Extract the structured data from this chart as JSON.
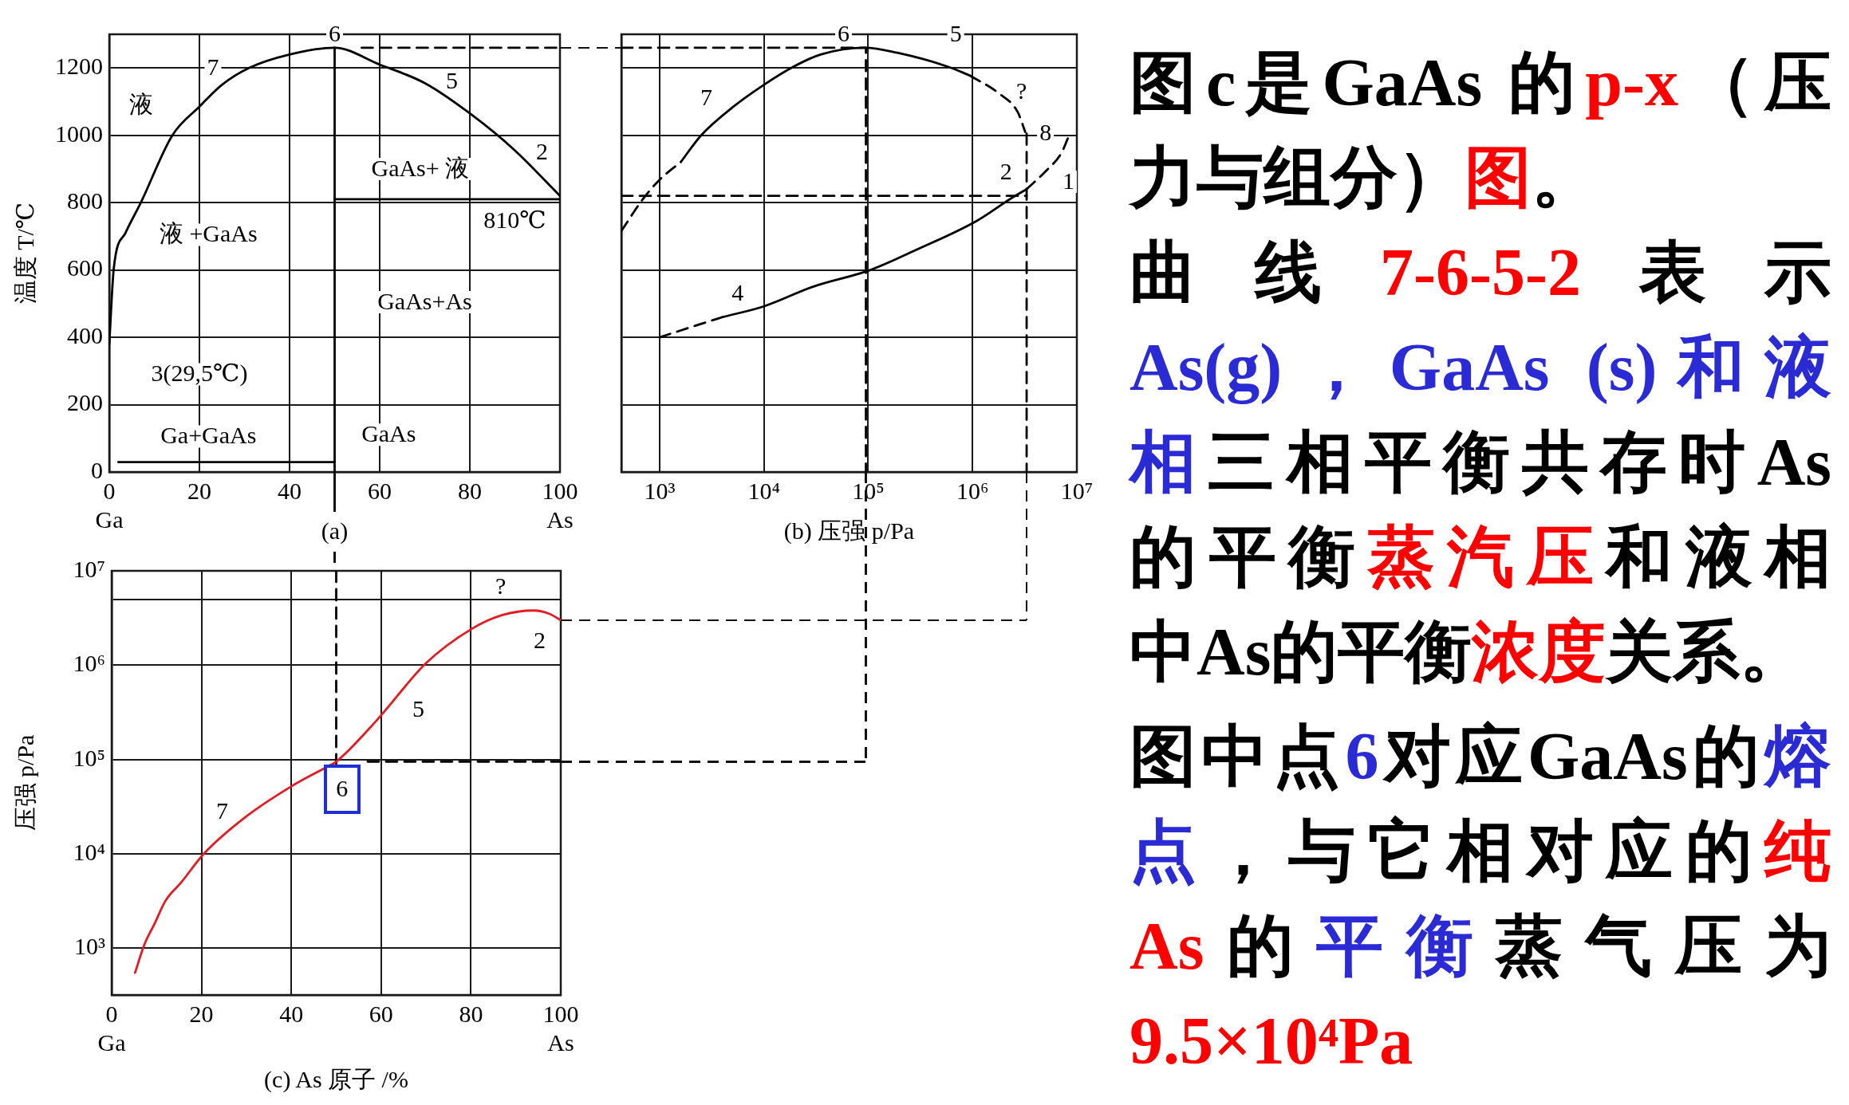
{
  "chart_data": [
    {
      "type": "line",
      "xlabel": "(a)",
      "ylabel": "温度 T/℃",
      "xlim": [
        0,
        100
      ],
      "xticks": [
        {
          "value": 0,
          "label": "0\nGa"
        },
        20,
        40,
        60,
        80,
        {
          "value": 100,
          "label": "100\nAs"
        }
      ],
      "ylim": [
        0,
        1300
      ],
      "yticks": [
        0,
        200,
        400,
        600,
        800,
        1000,
        1200
      ],
      "grid": true,
      "marker": "none",
      "series": [
        {
          "color": "#000000",
          "x": [
            0,
            1,
            3.6,
            7,
            14,
            20,
            25,
            31,
            40,
            50,
            60,
            70,
            80,
            90,
            100
          ],
          "values": [
            380,
            605,
            710,
            800,
            1000,
            1085,
            1150,
            1200,
            1240,
            1260,
            1210,
            1155,
            1065,
            955,
            820
          ]
        },
        {
          "color": "#000000",
          "x": [
            50,
            50
          ],
          "values": [
            0,
            1260
          ]
        },
        {
          "color": "#000000",
          "x": [
            2,
            50
          ],
          "values": [
            29.5,
            29.5
          ]
        },
        {
          "color": "#000000",
          "x": [
            50,
            100
          ],
          "values": [
            810,
            810
          ]
        },
        {
          "color": "#000000",
          "x": [
            56,
            100
          ],
          "values": [
            1260,
            1260
          ],
          "line_style": "dashed"
        }
      ],
      "annotations": [
        {
          "text": "6",
          "x": 50,
          "y": 1300
        },
        {
          "text": "7",
          "x": 23,
          "y": 1200
        },
        "液",
        {
          "text": "5",
          "x": 76,
          "y": 1160
        },
        {
          "text": "2",
          "x": 96,
          "y": 950
        },
        "GaAs+ 液",
        "810℃",
        "液 +GaAs",
        "GaAs+As",
        "3(29,5℃)",
        "Ga+GaAs",
        "GaAs"
      ]
    },
    {
      "type": "line",
      "xlabel": "(b) 压强 p/Pa",
      "log": "x",
      "xlim": [
        430,
        10000000
      ],
      "xticks": [
        {
          "value": 1000,
          "label": "10³"
        },
        {
          "value": 10000,
          "label": "10⁴"
        },
        {
          "value": 100000,
          "label": "10⁵"
        },
        {
          "value": 1000000,
          "label": "10⁶"
        },
        {
          "value": 10000000,
          "label": "10⁷"
        }
      ],
      "ylim": [
        0,
        1300
      ],
      "yticks": [
        0,
        200,
        400,
        600,
        800,
        1000,
        1200
      ],
      "tick_labels": "x",
      "grid": true,
      "marker": "none",
      "series": [
        {
          "color": "#000000",
          "x": [
            430,
            690,
            1000,
            1600
          ],
          "values": [
            716,
            810,
            868,
            921
          ],
          "line_style": "dashed"
        },
        {
          "color": "#000000",
          "x": [
            1600,
            2500,
            5000,
            10000,
            19000,
            35000,
            93000,
            190000,
            590000,
            950000
          ],
          "values": [
            921,
            1000,
            1083,
            1150,
            1203,
            1240,
            1260,
            1245,
            1203,
            1177
          ]
        },
        {
          "color": "#000000",
          "x": [
            950000,
            1800000,
            2700000,
            3200000
          ],
          "values": [
            1177,
            1124,
            1070,
            1010
          ],
          "line_style": "dashed"
        },
        {
          "color": "#000000",
          "x": [
            3300000,
            5100000,
            7100000,
            8300000
          ],
          "values": [
            840,
            895,
            947,
            995
          ],
          "line_style": "dashed"
        },
        {
          "color": "#000000",
          "x": [
            1000,
            2950,
            4000
          ],
          "values": [
            400,
            447,
            460
          ],
          "line_style": "dashed"
        },
        {
          "color": "#000000",
          "x": [
            4000,
            10000,
            30000,
            105000,
            290000,
            1100000,
            2300000,
            3300000
          ],
          "values": [
            460,
            492,
            551,
            600,
            660,
            746,
            811,
            840
          ]
        },
        {
          "color": "#000000",
          "x": [
            430,
            95000,
            95000
          ],
          "values": [
            1260,
            1260,
            0
          ],
          "line_style": "dashed"
        },
        {
          "color": "#000000",
          "x": [
            430,
            3300000
          ],
          "values": [
            820,
            820
          ],
          "line_style": "dashed"
        },
        {
          "color": "#000000",
          "x": [
            3300000,
            3300000
          ],
          "values": [
            1005,
            0
          ],
          "line_style": "dashed"
        }
      ],
      "annotations": [
        {
          "text": "6",
          "x": 58000,
          "y": 1300
        },
        {
          "text": "5",
          "x": 690000,
          "y": 1300
        },
        {
          "text": "7",
          "x": 2800,
          "y": 1110
        },
        {
          "text": "?",
          "x": 2950000,
          "y": 1130
        },
        {
          "text": "8",
          "x": 5000000,
          "y": 1005
        },
        {
          "text": "2",
          "x": 2100000,
          "y": 890
        },
        {
          "text": "1",
          "x": 8300000,
          "y": 862
        },
        {
          "text": "4",
          "x": 5600,
          "y": 530
        }
      ]
    },
    {
      "type": "line",
      "xlabel": "(c) As 原子 /%",
      "ylabel": "压强 p/Pa",
      "log": "y",
      "xlim": [
        0,
        100
      ],
      "xticks": [
        {
          "value": 0,
          "label": "0\nGa"
        },
        20,
        40,
        60,
        80,
        {
          "value": 100,
          "label": "100\nAs"
        }
      ],
      "ylim": [
        320,
        10000000
      ],
      "yticks": [
        {
          "value": 1000,
          "label": "10³"
        },
        {
          "value": 10000,
          "label": "10⁴"
        },
        {
          "value": 100000,
          "label": "10⁵"
        },
        {
          "value": 1000000,
          "label": "10⁶"
        },
        {
          "value": 5000000,
          "label": null
        },
        {
          "value": 10000000,
          "label": "10⁷"
        }
      ],
      "grid": true,
      "marker": "none",
      "series": [
        {
          "color": "#e31b23",
          "x": [
            5.2,
            7.3,
            9.5,
            12,
            15.5,
            20.5,
            30,
            40,
            48,
            50,
            59,
            70,
            80,
            87,
            94,
            97.5,
            100
          ],
          "values": [
            550,
            1100,
            1800,
            3200,
            5000,
            10000,
            25000,
            52000,
            84000,
            95000,
            260000,
            1050000,
            2400000,
            3400000,
            3800000,
            3500000,
            3000000
          ]
        },
        {
          "color": "#000000",
          "x": [
            50,
            50
          ],
          "values": [
            10000000,
            90000
          ],
          "line_style": "dashed"
        },
        {
          "color": "#000000",
          "x": [
            57,
            100
          ],
          "values": [
            95000,
            95000
          ],
          "line_style": "dashed"
        }
      ],
      "annotations": [
        {
          "text": "?",
          "x": 86.6,
          "y": 6800000
        },
        {
          "text": "2",
          "x": 95.3,
          "y": 1800000
        },
        {
          "text": "5",
          "x": 68.3,
          "y": 340000
        },
        {
          "text": "7",
          "x": 24.6,
          "y": 28000
        },
        {
          "text": "6",
          "x": 51.3,
          "y": 48000
        }
      ]
    },
    {
      "type": "other",
      "annotations": [
        "图c是GaAs 的",
        "p-x",
        "（压",
        "力与组分）",
        "图",
        "。",
        "曲线",
        "7-6-5-2",
        "表示",
        "As(g)，GaAs (s)和液",
        "相",
        "三相平衡共存时As",
        "的平衡",
        "蒸汽压",
        "和液相",
        "中As的平衡",
        "浓度",
        "关系。",
        "图中点",
        "6",
        "对应GaAs的",
        "熔",
        "点",
        "，与它相对应的",
        "纯",
        "As",
        "的",
        "平衡",
        "蒸气压为",
        "9.5×10⁴Pa"
      ],
      "colors": [
        "#000000",
        "#ff0000",
        "#000000",
        "#000000",
        "#ff0000",
        "#000000",
        "#000000",
        "#ff0000",
        "#000000",
        "#2b2bd6",
        "#2b2bd6",
        "#000000",
        "#000000",
        "#ff0000",
        "#000000",
        "#000000",
        "#ff0000",
        "#000000",
        "#000000",
        "#2b2bd6",
        "#000000",
        "#2b2bd6",
        "#2b2bd6",
        "#000000",
        "#ff0000",
        "#ff0000",
        "#000000",
        "#2b2bd6",
        "#000000",
        "#ff0000"
      ]
    }
  ]
}
